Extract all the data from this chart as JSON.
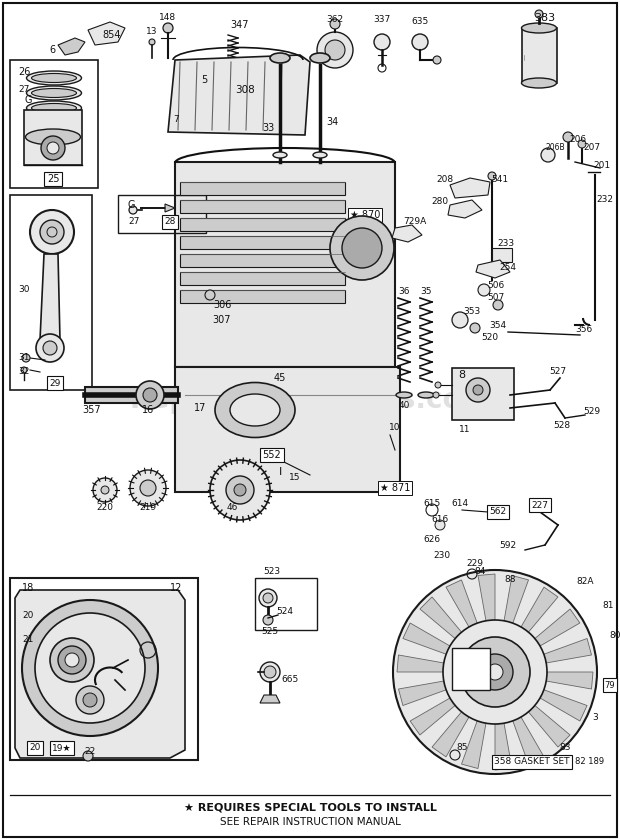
{
  "bg_color": "#ffffff",
  "border_color": "#000000",
  "watermark": "ReplacementParts.com",
  "footer_line1": "★ REQUIRES SPECIAL TOOLS TO INSTALL",
  "footer_line2": "SEE REPAIR INSTRUCTION MANUAL",
  "line_color": "#1a1a1a",
  "fill_light": "#e8e8e8",
  "fill_mid": "#cccccc",
  "fill_dark": "#aaaaaa"
}
